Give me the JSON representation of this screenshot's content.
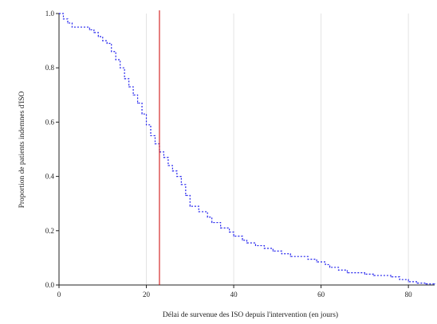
{
  "chart_data": {
    "type": "line",
    "title": "",
    "xlabel": "Délai de survenue des ISO depuis l'intervention (en jours)",
    "ylabel": "Proportion de patients indemnes d'ISO",
    "xlim": [
      0,
      86
    ],
    "ylim": [
      0,
      1.0
    ],
    "x_ticks": [
      0,
      20,
      40,
      60,
      80
    ],
    "x_tick_labels": [
      "0",
      "20",
      "40",
      "60",
      "80"
    ],
    "y_ticks": [
      0.0,
      0.2,
      0.4,
      0.6,
      0.8,
      1.0
    ],
    "y_tick_labels": [
      "0.0",
      "0.2",
      "0.4",
      "0.6",
      "0.8",
      "1.0"
    ],
    "grid": "vertical",
    "legend": "none",
    "reference_line": {
      "x": 23,
      "color": "#cc0000"
    },
    "series": [
      {
        "color": "#2222ee",
        "style": "dotted-step",
        "points": [
          [
            0,
            1.0
          ],
          [
            1,
            0.98
          ],
          [
            2,
            0.965
          ],
          [
            3,
            0.95
          ],
          [
            7,
            0.94
          ],
          [
            8,
            0.93
          ],
          [
            9,
            0.915
          ],
          [
            10,
            0.9
          ],
          [
            11,
            0.89
          ],
          [
            12,
            0.86
          ],
          [
            13,
            0.83
          ],
          [
            14,
            0.8
          ],
          [
            15,
            0.76
          ],
          [
            16,
            0.73
          ],
          [
            17,
            0.7
          ],
          [
            18,
            0.67
          ],
          [
            19,
            0.63
          ],
          [
            20,
            0.59
          ],
          [
            21,
            0.55
          ],
          [
            22,
            0.52
          ],
          [
            23,
            0.49
          ],
          [
            24,
            0.47
          ],
          [
            25,
            0.44
          ],
          [
            26,
            0.42
          ],
          [
            27,
            0.4
          ],
          [
            28,
            0.37
          ],
          [
            29,
            0.33
          ],
          [
            30,
            0.29
          ],
          [
            32,
            0.27
          ],
          [
            34,
            0.25
          ],
          [
            35,
            0.23
          ],
          [
            37,
            0.21
          ],
          [
            39,
            0.195
          ],
          [
            40,
            0.18
          ],
          [
            42,
            0.165
          ],
          [
            43,
            0.155
          ],
          [
            45,
            0.145
          ],
          [
            47,
            0.135
          ],
          [
            49,
            0.125
          ],
          [
            51,
            0.115
          ],
          [
            53,
            0.105
          ],
          [
            57,
            0.095
          ],
          [
            59,
            0.085
          ],
          [
            61,
            0.075
          ],
          [
            62,
            0.065
          ],
          [
            64,
            0.055
          ],
          [
            66,
            0.045
          ],
          [
            70,
            0.04
          ],
          [
            72,
            0.035
          ],
          [
            76,
            0.03
          ],
          [
            78,
            0.02
          ],
          [
            80,
            0.012
          ],
          [
            82,
            0.007
          ],
          [
            84,
            0.004
          ],
          [
            86,
            0.004
          ]
        ]
      }
    ]
  }
}
